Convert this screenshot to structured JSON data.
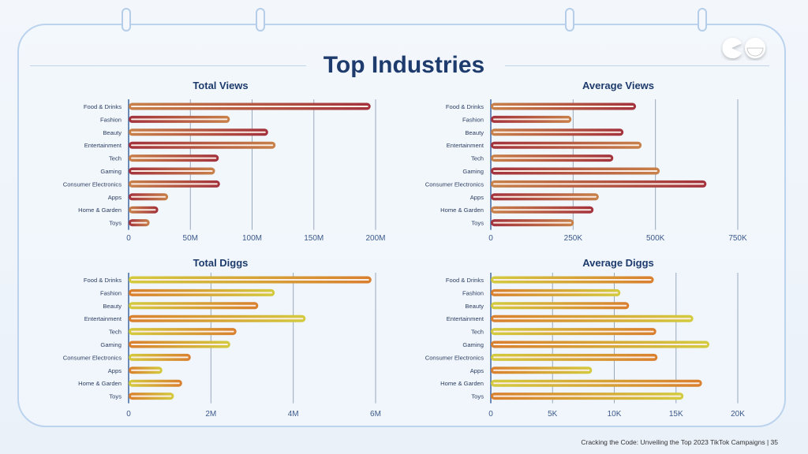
{
  "slide": {
    "title": "Top Industries",
    "footer": "Cracking the Code: Unveiling the Top 2023 TikTok Campaigns |  35",
    "colors": {
      "title": "#1d3b6c",
      "frame": "#bcd3ee",
      "background": "#eef4fb"
    }
  },
  "chart_data": [
    {
      "type": "bar",
      "orientation": "horizontal",
      "title": "Total Views",
      "categories": [
        "Food & Drinks",
        "Fashion",
        "Beauty",
        "Entertainment",
        "Tech",
        "Gaming",
        "Consumer Electronics",
        "Apps",
        "Home & Garden",
        "Toys"
      ],
      "values": [
        196000000,
        82000000,
        113000000,
        119000000,
        73000000,
        70000000,
        74000000,
        32000000,
        24000000,
        17000000
      ],
      "xlim": [
        0,
        200000000
      ],
      "ticks": [
        "0",
        "50M",
        "100M",
        "150M",
        "200M"
      ],
      "grid": true,
      "colors": [
        "#c8824a",
        "#a3323d"
      ]
    },
    {
      "type": "bar",
      "orientation": "horizontal",
      "title": "Average Views",
      "categories": [
        "Food & Drinks",
        "Fashion",
        "Beauty",
        "Entertainment",
        "Tech",
        "Gaming",
        "Consumer Electronics",
        "Apps",
        "Home & Garden",
        "Toys"
      ],
      "values": [
        441000,
        245000,
        403000,
        458000,
        372000,
        513000,
        655000,
        328000,
        312000,
        252000
      ],
      "xlim": [
        0,
        750000
      ],
      "ticks": [
        "0",
        "250K",
        "500K",
        "750K"
      ],
      "grid": true,
      "colors": [
        "#c8824a",
        "#a3323d"
      ]
    },
    {
      "type": "bar",
      "orientation": "horizontal",
      "title": "Total Diggs",
      "categories": [
        "Food & Drinks",
        "Fashion",
        "Beauty",
        "Entertainment",
        "Tech",
        "Gaming",
        "Consumer Electronics",
        "Apps",
        "Home & Garden",
        "Toys"
      ],
      "values": [
        5900000,
        3550000,
        3150000,
        4300000,
        2620000,
        2470000,
        1510000,
        820000,
        1300000,
        1100000
      ],
      "xlim": [
        0,
        6000000
      ],
      "ticks": [
        "0",
        "2M",
        "4M",
        "6M"
      ],
      "grid": true,
      "colors": [
        "#d3cb3f",
        "#d97f2f"
      ]
    },
    {
      "type": "bar",
      "orientation": "horizontal",
      "title": "Average Diggs",
      "categories": [
        "Food & Drinks",
        "Fashion",
        "Beauty",
        "Entertainment",
        "Tech",
        "Gaming",
        "Consumer Electronics",
        "Apps",
        "Home & Garden",
        "Toys"
      ],
      "values": [
        13200,
        10500,
        11200,
        16400,
        13400,
        17700,
        13500,
        8200,
        17100,
        15600
      ],
      "xlim": [
        0,
        20000
      ],
      "ticks": [
        "0",
        "5K",
        "10K",
        "15K",
        "20K"
      ],
      "grid": true,
      "colors": [
        "#d3cb3f",
        "#d97f2f"
      ]
    }
  ]
}
